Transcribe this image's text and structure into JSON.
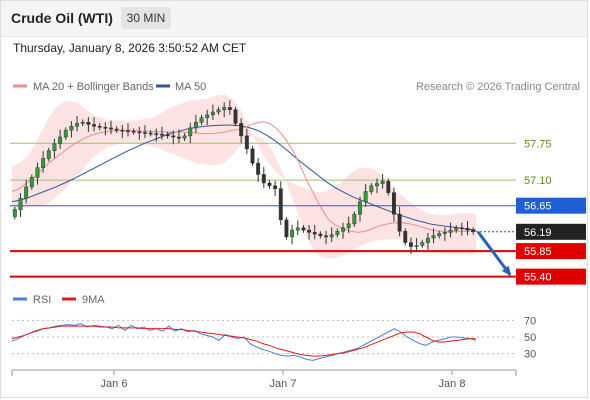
{
  "header": {
    "title": "Crude Oil (WTI)",
    "timeframe_label": "30 MIN",
    "timestamp": "Thursday, January 8, 2026 3:50:52 AM CET"
  },
  "chart_data": [
    {
      "type": "candlestick",
      "legend": [
        {
          "name": "MA 20 + Bollinger Bands",
          "color": "#f08c8c"
        },
        {
          "name": "MA 50",
          "color": "#2f5597"
        }
      ],
      "attribution": "Research © 2026 Trading Central",
      "x_ticks": [
        "Jan 6",
        "Jan 7",
        "Jan 8"
      ],
      "ylim": [
        55.2,
        58.6
      ],
      "price_levels": [
        {
          "label": "57.75",
          "value": 57.75,
          "kind": "resistance",
          "color": "#9ac46a"
        },
        {
          "label": "57.10",
          "value": 57.1,
          "kind": "resistance",
          "color": "#9ac46a"
        },
        {
          "label": "56.65",
          "value": 56.65,
          "kind": "pivot",
          "color": "#1f5fd6"
        },
        {
          "label": "55.85",
          "value": 55.85,
          "kind": "support",
          "color": "#e10000"
        },
        {
          "label": "55.40",
          "value": 55.4,
          "kind": "support",
          "color": "#e10000"
        }
      ],
      "last_price": {
        "label": "56.19",
        "value": 56.19
      },
      "forecast": {
        "from": 56.19,
        "to": 55.4,
        "color": "#2a62b3"
      },
      "close_series": [
        56.58,
        56.78,
        56.98,
        57.15,
        57.32,
        57.48,
        57.62,
        57.74,
        57.86,
        57.98,
        58.05,
        58.1,
        58.12,
        58.08,
        58.05,
        58.03,
        58.02,
        58.0,
        57.98,
        57.97,
        57.96,
        57.95,
        57.94,
        57.93,
        57.92,
        57.91,
        57.9,
        57.88,
        57.86,
        57.84,
        57.88,
        58.02,
        58.12,
        58.2,
        58.25,
        58.3,
        58.34,
        58.38,
        58.34,
        58.1,
        57.88,
        57.65,
        57.4,
        57.2,
        57.05,
        57.0,
        56.95,
        56.4,
        56.1,
        56.22,
        56.26,
        56.22,
        56.18,
        56.15,
        56.12,
        56.1,
        56.14,
        56.2,
        56.26,
        56.33,
        56.5,
        56.72,
        56.9,
        57.0,
        57.04,
        57.08,
        56.88,
        56.5,
        56.2,
        56.0,
        55.93,
        55.95,
        56.0,
        56.08,
        56.12,
        56.16,
        56.18,
        56.22,
        56.26,
        56.25,
        56.22,
        56.19
      ],
      "ma20": [
        56.9,
        56.95,
        57.05,
        57.15,
        57.28,
        57.4,
        57.5,
        57.6,
        57.7,
        57.78,
        57.85,
        57.9,
        57.94,
        57.96,
        57.97,
        57.98,
        57.98,
        57.97,
        57.96,
        57.96,
        57.95,
        57.95,
        57.95,
        57.95,
        57.94,
        57.93,
        57.92,
        57.92,
        57.93,
        57.95,
        57.98,
        58.0,
        58.05,
        58.1,
        58.13,
        58.1,
        58.0,
        57.85,
        57.65,
        57.4,
        57.1,
        56.85,
        56.6,
        56.4,
        56.3,
        56.25,
        56.2,
        56.18,
        56.2,
        56.25,
        56.3,
        56.33,
        56.35,
        56.35,
        56.33,
        56.3,
        56.26,
        56.22,
        56.2,
        56.2,
        56.2,
        56.2,
        56.2,
        56.2
      ],
      "bb_upper": [
        57.35,
        57.4,
        57.5,
        57.7,
        57.95,
        58.2,
        58.38,
        58.48,
        58.5,
        58.45,
        58.35,
        58.25,
        58.2,
        58.16,
        58.15,
        58.15,
        58.15,
        58.15,
        58.18,
        58.2,
        58.26,
        58.34,
        58.4,
        58.45,
        58.5,
        58.52,
        58.52,
        58.55,
        58.6,
        58.6,
        58.52,
        58.34,
        58.1,
        57.82,
        57.56,
        57.38,
        57.22,
        57.12,
        57.05,
        57.0,
        56.95,
        56.9,
        56.88,
        56.92,
        57.0,
        57.1,
        57.22,
        57.3,
        57.32,
        57.3,
        57.2,
        57.05,
        56.92,
        56.82,
        56.72,
        56.62,
        56.55,
        56.5,
        56.48,
        56.48,
        56.5,
        56.52,
        56.52,
        56.5
      ],
      "bb_lower": [
        56.55,
        56.6,
        56.65,
        56.65,
        56.65,
        56.7,
        56.8,
        56.92,
        57.05,
        57.2,
        57.36,
        57.5,
        57.6,
        57.68,
        57.72,
        57.75,
        57.75,
        57.74,
        57.72,
        57.7,
        57.66,
        57.6,
        57.55,
        57.5,
        57.45,
        57.4,
        57.38,
        57.36,
        57.36,
        57.42,
        57.55,
        57.72,
        57.85,
        57.88,
        57.84,
        57.7,
        57.45,
        57.15,
        56.8,
        56.45,
        56.1,
        55.85,
        55.75,
        55.72,
        55.73,
        55.78,
        55.85,
        55.92,
        55.98,
        56.02,
        56.05,
        56.06,
        56.06,
        56.05,
        56.02,
        55.98,
        55.92,
        55.86,
        55.82,
        55.8,
        55.8,
        55.8,
        55.8,
        55.82
      ],
      "ma50": [
        56.72,
        56.75,
        56.8,
        56.86,
        56.92,
        56.98,
        57.05,
        57.12,
        57.2,
        57.28,
        57.36,
        57.44,
        57.52,
        57.6,
        57.67,
        57.74,
        57.8,
        57.86,
        57.92,
        57.96,
        58.0,
        58.03,
        58.05,
        58.06,
        58.07,
        58.07,
        58.06,
        58.03,
        57.98,
        57.9,
        57.8,
        57.68,
        57.55,
        57.42,
        57.3,
        57.18,
        57.06,
        56.96,
        56.88,
        56.8,
        56.74,
        56.68,
        56.62,
        56.56,
        56.5,
        56.45,
        56.4,
        56.36,
        56.32,
        56.3,
        56.28,
        56.26,
        56.24,
        56.22
      ],
      "y_tick_labels": [
        "57.75",
        "57.10",
        "56.65",
        "56.19",
        "55.85",
        "55.40"
      ]
    },
    {
      "type": "line",
      "legend": [
        {
          "name": "RSI",
          "color": "#4a7fd8"
        },
        {
          "name": "9MA",
          "color": "#e21a1a"
        }
      ],
      "ylim": [
        20,
        80
      ],
      "y_ticks": [
        30,
        50,
        70
      ],
      "rsi": [
        45,
        48,
        52,
        55,
        57,
        60,
        61,
        63,
        64,
        65,
        64,
        66,
        62,
        64,
        63,
        62,
        60,
        64,
        58,
        64,
        60,
        62,
        58,
        60,
        57,
        63,
        57,
        60,
        56,
        58,
        54,
        52,
        50,
        46,
        53,
        50,
        48,
        50,
        42,
        38,
        35,
        33,
        30,
        28,
        27,
        28,
        26,
        23,
        22,
        24,
        26,
        28,
        30,
        32,
        34,
        36,
        40,
        44,
        48,
        52,
        56,
        60,
        56,
        50,
        46,
        42,
        40,
        44,
        46,
        48,
        50,
        50,
        49,
        48,
        46
      ],
      "ma9": [
        48,
        50,
        52,
        55,
        58,
        60,
        61,
        62,
        63,
        63,
        63,
        63,
        63,
        63,
        62,
        62,
        62,
        61,
        61,
        61,
        61,
        60,
        60,
        60,
        60,
        60,
        59,
        59,
        58,
        57,
        56,
        55,
        54,
        53,
        52,
        51,
        50,
        49,
        47,
        45,
        42,
        40,
        37,
        35,
        33,
        31,
        29,
        28,
        27,
        27,
        28,
        29,
        30,
        31,
        33,
        35,
        37,
        40,
        43,
        46,
        49,
        52,
        55,
        56,
        56,
        54,
        50,
        46,
        44,
        44,
        45,
        46,
        47,
        48,
        48
      ]
    }
  ]
}
